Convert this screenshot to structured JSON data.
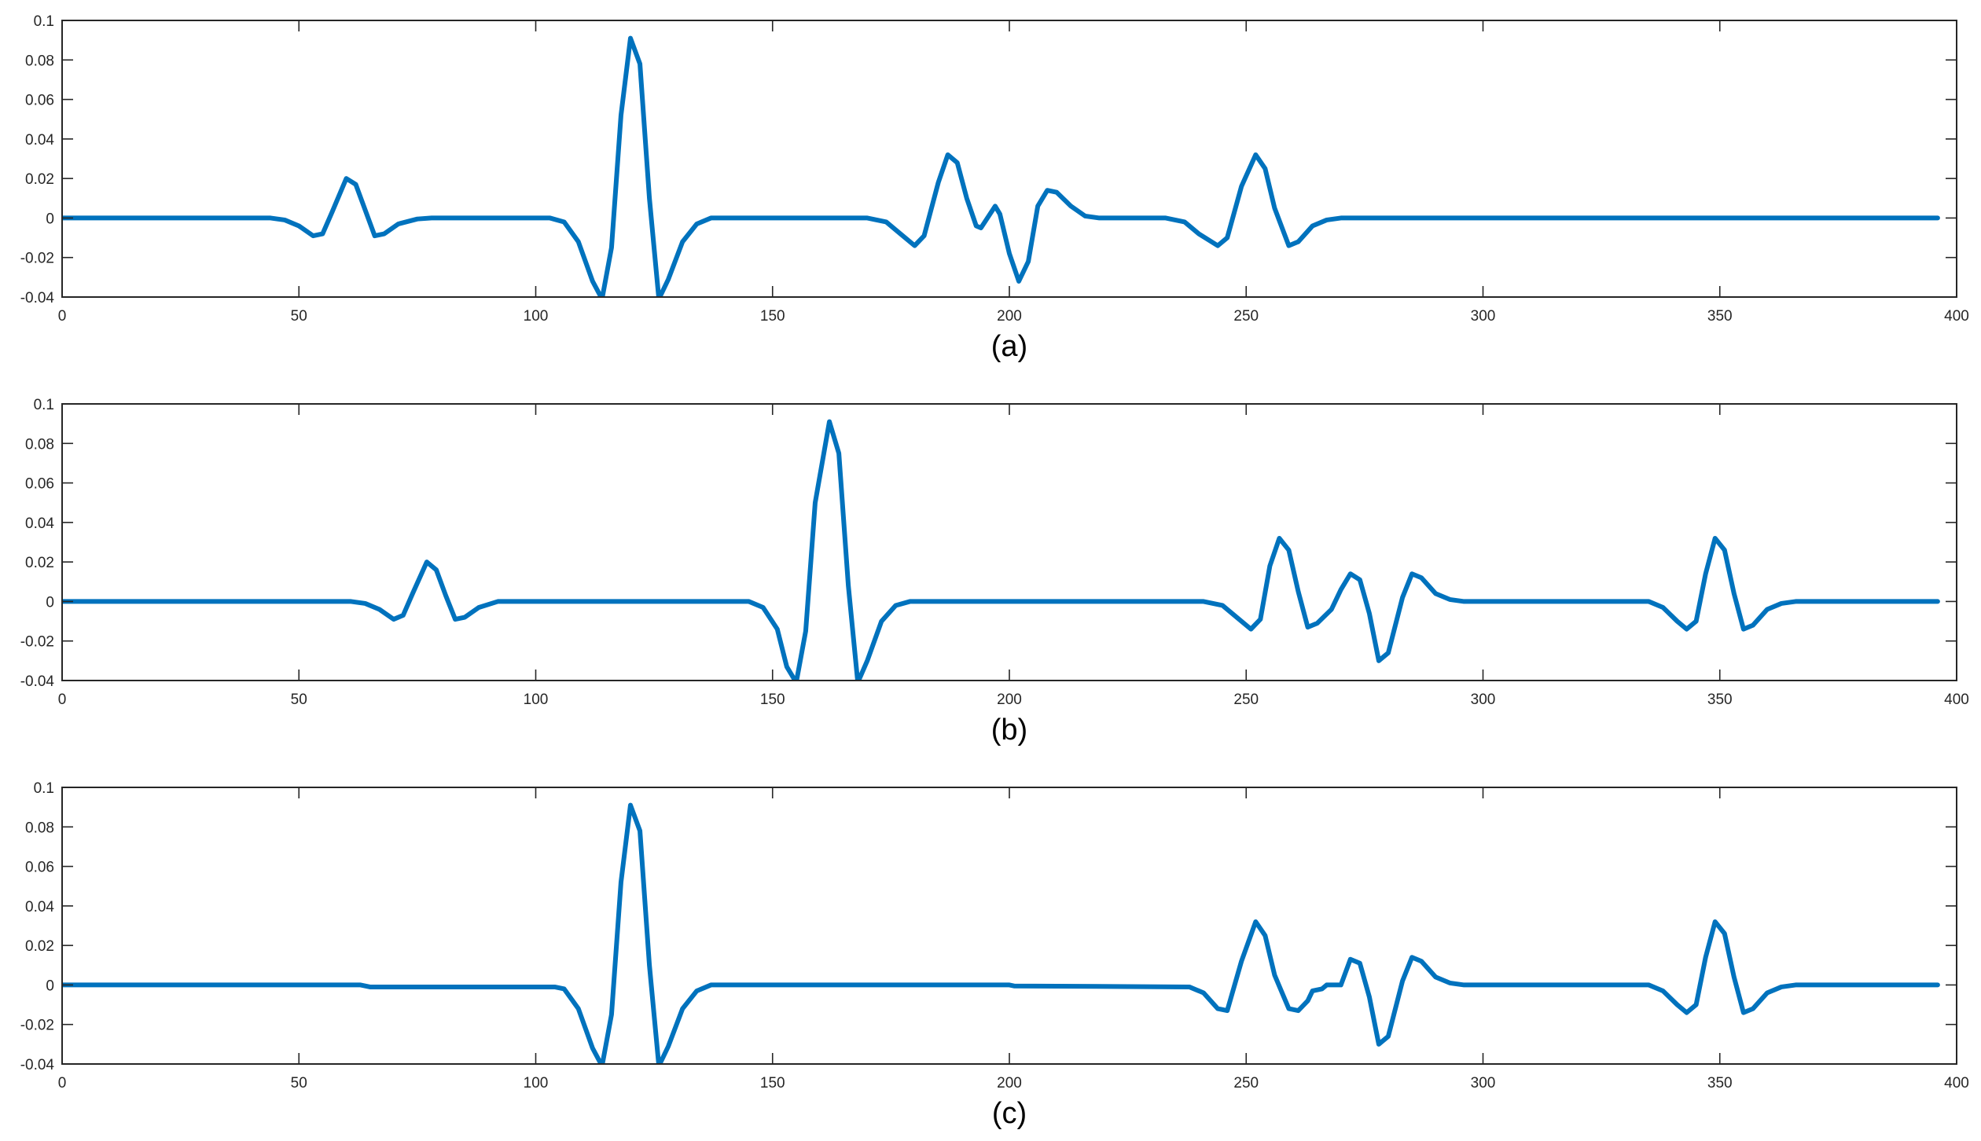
{
  "colors": {
    "series": "#0072BD",
    "axis": "#262626",
    "background": "#ffffff"
  },
  "chart_data": [
    {
      "type": "line",
      "caption": "(a)",
      "xlim": [
        0,
        400
      ],
      "ylim": [
        -0.04,
        0.1
      ],
      "xticks": [
        0,
        50,
        100,
        150,
        200,
        250,
        300,
        350,
        400
      ],
      "yticks": [
        -0.04,
        -0.02,
        0,
        0.02,
        0.04,
        0.06,
        0.08,
        0.1
      ],
      "ytick_labels": [
        "-0.04",
        "-0.02",
        "0",
        "0.02",
        "0.04",
        "0.06",
        "0.08",
        "0.1"
      ],
      "grid": false,
      "series": [
        {
          "values": [
            [
              0,
              0
            ],
            [
              44,
              0
            ],
            [
              47,
              -0.001
            ],
            [
              50,
              -0.004
            ],
            [
              53,
              -0.009
            ],
            [
              55,
              -0.008
            ],
            [
              57,
              0.003
            ],
            [
              60,
              0.02
            ],
            [
              62,
              0.017
            ],
            [
              64,
              0.004
            ],
            [
              66,
              -0.009
            ],
            [
              68,
              -0.008
            ],
            [
              71,
              -0.003
            ],
            [
              75,
              -0.0005
            ],
            [
              78,
              0
            ],
            [
              103,
              0
            ],
            [
              106,
              -0.002
            ],
            [
              109,
              -0.012
            ],
            [
              112,
              -0.032
            ],
            [
              114,
              -0.041
            ],
            [
              116,
              -0.015
            ],
            [
              118,
              0.052
            ],
            [
              120,
              0.091
            ],
            [
              122,
              0.078
            ],
            [
              124,
              0.01
            ],
            [
              126,
              -0.041
            ],
            [
              128,
              -0.031
            ],
            [
              131,
              -0.012
            ],
            [
              134,
              -0.003
            ],
            [
              137,
              0
            ],
            [
              170,
              0
            ],
            [
              174,
              -0.002
            ],
            [
              177,
              -0.008
            ],
            [
              180,
              -0.014
            ],
            [
              182,
              -0.009
            ],
            [
              185,
              0.018
            ],
            [
              187,
              0.032
            ],
            [
              189,
              0.028
            ],
            [
              191,
              0.01
            ],
            [
              193,
              -0.004
            ],
            [
              194,
              -0.005
            ],
            [
              197,
              0.006
            ],
            [
              198,
              0.002
            ],
            [
              200,
              -0.018
            ],
            [
              202,
              -0.032
            ],
            [
              204,
              -0.022
            ],
            [
              206,
              0.006
            ],
            [
              208,
              0.014
            ],
            [
              210,
              0.013
            ],
            [
              213,
              0.006
            ],
            [
              216,
              0.001
            ],
            [
              219,
              0
            ],
            [
              233,
              0
            ],
            [
              237,
              -0.002
            ],
            [
              240,
              -0.008
            ],
            [
              244,
              -0.014
            ],
            [
              246,
              -0.01
            ],
            [
              249,
              0.016
            ],
            [
              252,
              0.032
            ],
            [
              254,
              0.025
            ],
            [
              256,
              0.005
            ],
            [
              259,
              -0.014
            ],
            [
              261,
              -0.012
            ],
            [
              264,
              -0.004
            ],
            [
              267,
              -0.001
            ],
            [
              270,
              0
            ],
            [
              396,
              0
            ]
          ]
        }
      ]
    },
    {
      "type": "line",
      "caption": "(b)",
      "xlim": [
        0,
        400
      ],
      "ylim": [
        -0.04,
        0.1
      ],
      "xticks": [
        0,
        50,
        100,
        150,
        200,
        250,
        300,
        350,
        400
      ],
      "yticks": [
        -0.04,
        -0.02,
        0,
        0.02,
        0.04,
        0.06,
        0.08,
        0.1
      ],
      "ytick_labels": [
        "-0.04",
        "-0.02",
        "0",
        "0.02",
        "0.04",
        "0.06",
        "0.08",
        "0.1"
      ],
      "grid": false,
      "series": [
        {
          "values": [
            [
              0,
              0
            ],
            [
              61,
              0
            ],
            [
              64,
              -0.001
            ],
            [
              67,
              -0.004
            ],
            [
              70,
              -0.009
            ],
            [
              72,
              -0.007
            ],
            [
              74,
              0.004
            ],
            [
              77,
              0.02
            ],
            [
              79,
              0.016
            ],
            [
              81,
              0.003
            ],
            [
              83,
              -0.009
            ],
            [
              85,
              -0.008
            ],
            [
              88,
              -0.003
            ],
            [
              92,
              0
            ],
            [
              145,
              0
            ],
            [
              148,
              -0.003
            ],
            [
              151,
              -0.014
            ],
            [
              153,
              -0.033
            ],
            [
              155,
              -0.041
            ],
            [
              157,
              -0.015
            ],
            [
              159,
              0.05
            ],
            [
              162,
              0.091
            ],
            [
              164,
              0.075
            ],
            [
              166,
              0.008
            ],
            [
              168,
              -0.041
            ],
            [
              170,
              -0.03
            ],
            [
              173,
              -0.01
            ],
            [
              176,
              -0.002
            ],
            [
              179,
              0
            ],
            [
              241,
              0
            ],
            [
              245,
              -0.002
            ],
            [
              248,
              -0.008
            ],
            [
              251,
              -0.014
            ],
            [
              253,
              -0.009
            ],
            [
              255,
              0.018
            ],
            [
              257,
              0.032
            ],
            [
              259,
              0.026
            ],
            [
              261,
              0.005
            ],
            [
              263,
              -0.013
            ],
            [
              265,
              -0.011
            ],
            [
              268,
              -0.004
            ],
            [
              270,
              0.006
            ],
            [
              272,
              0.014
            ],
            [
              274,
              0.011
            ],
            [
              276,
              -0.006
            ],
            [
              278,
              -0.03
            ],
            [
              280,
              -0.026
            ],
            [
              283,
              0.002
            ],
            [
              285,
              0.014
            ],
            [
              287,
              0.012
            ],
            [
              290,
              0.004
            ],
            [
              293,
              0.001
            ],
            [
              296,
              0
            ],
            [
              335,
              0
            ],
            [
              338,
              -0.003
            ],
            [
              341,
              -0.01
            ],
            [
              343,
              -0.014
            ],
            [
              345,
              -0.01
            ],
            [
              347,
              0.014
            ],
            [
              349,
              0.032
            ],
            [
              351,
              0.026
            ],
            [
              353,
              0.004
            ],
            [
              355,
              -0.014
            ],
            [
              357,
              -0.012
            ],
            [
              360,
              -0.004
            ],
            [
              363,
              -0.001
            ],
            [
              366,
              0
            ],
            [
              396,
              0
            ]
          ]
        }
      ]
    },
    {
      "type": "line",
      "caption": "(c)",
      "xlim": [
        0,
        400
      ],
      "ylim": [
        -0.04,
        0.1
      ],
      "xticks": [
        0,
        50,
        100,
        150,
        200,
        250,
        300,
        350,
        400
      ],
      "yticks": [
        -0.04,
        -0.02,
        0,
        0.02,
        0.04,
        0.06,
        0.08,
        0.1
      ],
      "ytick_labels": [
        "-0.04",
        "-0.02",
        "0",
        "0.02",
        "0.04",
        "0.06",
        "0.08",
        "0.1"
      ],
      "grid": false,
      "series": [
        {
          "values": [
            [
              0,
              0
            ],
            [
              63,
              0
            ],
            [
              65,
              -0.001
            ],
            [
              104,
              -0.001
            ],
            [
              106,
              -0.002
            ],
            [
              109,
              -0.012
            ],
            [
              112,
              -0.032
            ],
            [
              114,
              -0.041
            ],
            [
              116,
              -0.015
            ],
            [
              118,
              0.052
            ],
            [
              120,
              0.091
            ],
            [
              122,
              0.078
            ],
            [
              124,
              0.01
            ],
            [
              126,
              -0.041
            ],
            [
              128,
              -0.031
            ],
            [
              131,
              -0.012
            ],
            [
              134,
              -0.003
            ],
            [
              137,
              0
            ],
            [
              200,
              0
            ],
            [
              201,
              -0.0005
            ],
            [
              238,
              -0.001
            ],
            [
              241,
              -0.004
            ],
            [
              244,
              -0.012
            ],
            [
              246,
              -0.013
            ],
            [
              249,
              0.012
            ],
            [
              252,
              0.032
            ],
            [
              254,
              0.025
            ],
            [
              256,
              0.005
            ],
            [
              259,
              -0.012
            ],
            [
              261,
              -0.013
            ],
            [
              263,
              -0.008
            ],
            [
              264,
              -0.003
            ],
            [
              266,
              -0.002
            ],
            [
              267,
              0
            ],
            [
              270,
              0
            ],
            [
              272,
              0.013
            ],
            [
              274,
              0.011
            ],
            [
              276,
              -0.006
            ],
            [
              278,
              -0.03
            ],
            [
              280,
              -0.026
            ],
            [
              283,
              0.002
            ],
            [
              285,
              0.014
            ],
            [
              287,
              0.012
            ],
            [
              290,
              0.004
            ],
            [
              293,
              0.001
            ],
            [
              296,
              0
            ],
            [
              335,
              0
            ],
            [
              338,
              -0.003
            ],
            [
              341,
              -0.01
            ],
            [
              343,
              -0.014
            ],
            [
              345,
              -0.01
            ],
            [
              347,
              0.014
            ],
            [
              349,
              0.032
            ],
            [
              351,
              0.026
            ],
            [
              353,
              0.004
            ],
            [
              355,
              -0.014
            ],
            [
              357,
              -0.012
            ],
            [
              360,
              -0.004
            ],
            [
              363,
              -0.001
            ],
            [
              366,
              0
            ],
            [
              396,
              0
            ]
          ]
        }
      ]
    }
  ]
}
